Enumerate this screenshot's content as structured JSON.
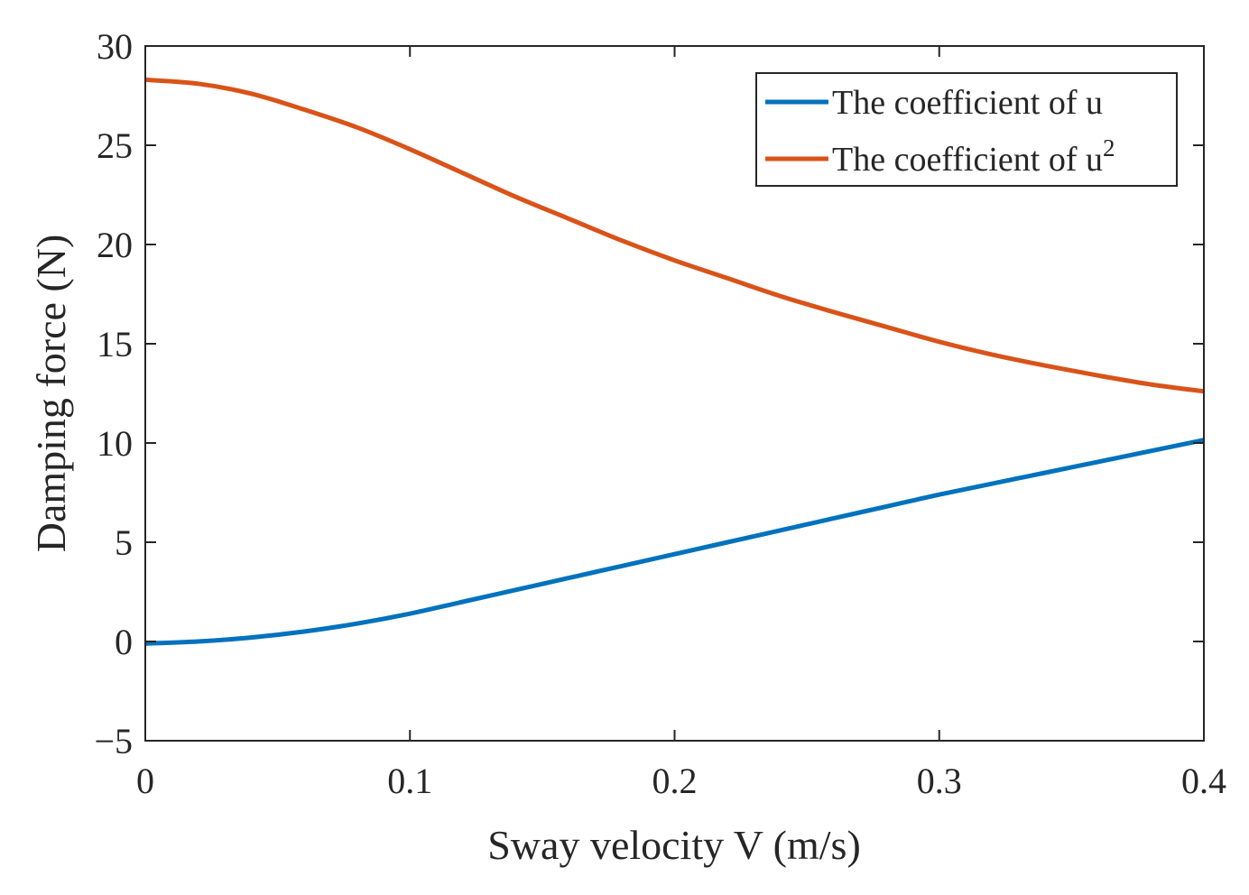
{
  "chart_data": {
    "type": "line",
    "title": "",
    "xlabel": "Sway velocity V (m/s)",
    "ylabel": "Damping force (N)",
    "xlim": [
      0,
      0.4
    ],
    "ylim": [
      -5,
      30
    ],
    "xticks": [
      0,
      0.1,
      0.2,
      0.3,
      0.4
    ],
    "xtick_labels": [
      "0",
      "0.1",
      "0.2",
      "0.3",
      "0.4"
    ],
    "yticks": [
      -5,
      0,
      5,
      10,
      15,
      20,
      25,
      30
    ],
    "ytick_labels": [
      "−5",
      "0",
      "5",
      "10",
      "15",
      "20",
      "25",
      "30"
    ],
    "grid": false,
    "legend_position": "top-right",
    "x": [
      0,
      0.02,
      0.04,
      0.06,
      0.08,
      0.1,
      0.12,
      0.14,
      0.16,
      0.18,
      0.2,
      0.22,
      0.24,
      0.26,
      0.28,
      0.3,
      0.32,
      0.34,
      0.36,
      0.38,
      0.4
    ],
    "series": [
      {
        "name": "The coefficient of u",
        "legend_base": "The coefficient of u",
        "legend_sup": "",
        "color": "#0072BD",
        "values": [
          -0.1,
          0.0,
          0.2,
          0.5,
          0.9,
          1.4,
          2.0,
          2.6,
          3.2,
          3.8,
          4.4,
          5.0,
          5.6,
          6.2,
          6.8,
          7.4,
          7.95,
          8.5,
          9.05,
          9.6,
          10.15
        ]
      },
      {
        "name": "The coefficient of u^2",
        "legend_base": "The coefficient of u",
        "legend_sup": "2",
        "color": "#D95319",
        "values": [
          28.3,
          28.1,
          27.6,
          26.8,
          25.9,
          24.8,
          23.6,
          22.4,
          21.3,
          20.2,
          19.2,
          18.3,
          17.4,
          16.6,
          15.85,
          15.1,
          14.45,
          13.9,
          13.4,
          12.95,
          12.6
        ]
      }
    ]
  }
}
